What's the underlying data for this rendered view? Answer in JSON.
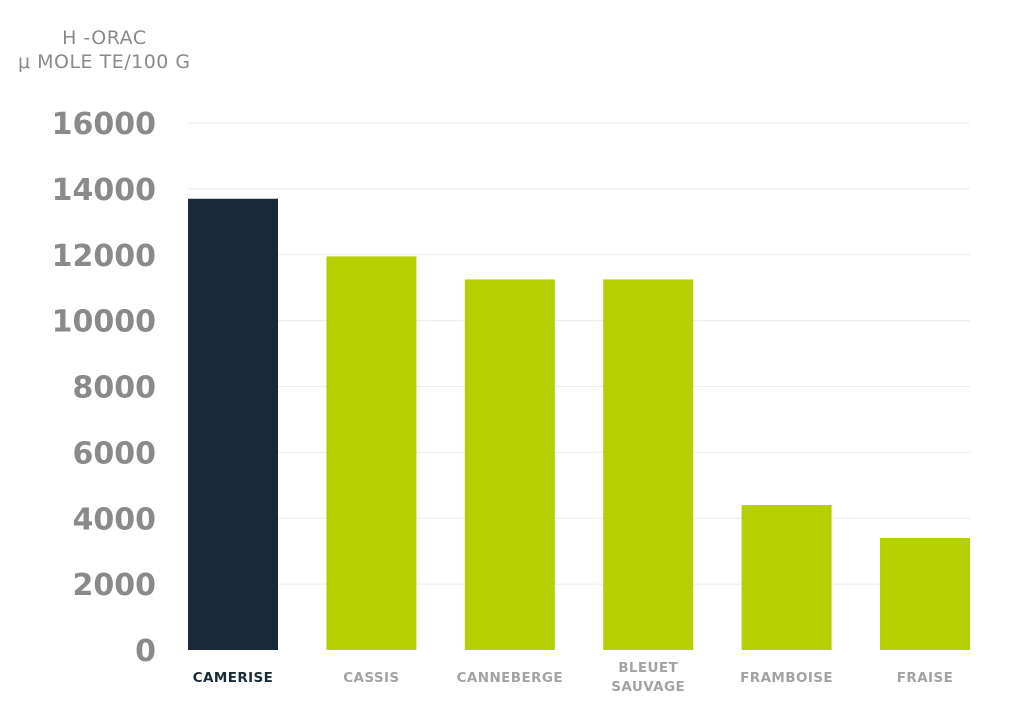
{
  "chart_data": {
    "type": "bar",
    "ylabel_lines": [
      "H -ORAC",
      "μ MOLE TE/100 G"
    ],
    "xlabel": "",
    "categories": [
      [
        "CAMERISE"
      ],
      [
        "CASSIS"
      ],
      [
        "CANNEBERGE"
      ],
      [
        "BLEUET",
        "SAUVAGE"
      ],
      [
        "FRAMBOISE"
      ],
      [
        "FRAISE"
      ]
    ],
    "values": [
      13700,
      11950,
      11250,
      11250,
      4400,
      3400
    ],
    "ylim": [
      0,
      16000
    ],
    "yticks": [
      0,
      2000,
      4000,
      6000,
      8000,
      10000,
      12000,
      14000,
      16000
    ],
    "grid": true,
    "colors": {
      "highlight": "#18293a",
      "default": "#b5d000"
    },
    "highlight_index": 0
  }
}
